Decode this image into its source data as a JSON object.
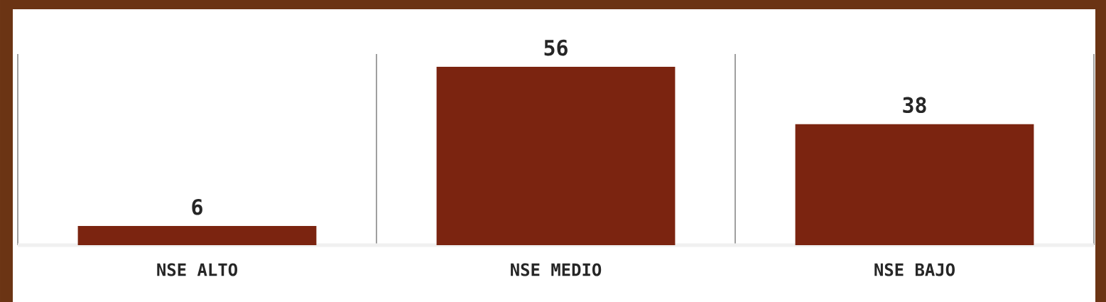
{
  "chart_data": {
    "type": "bar",
    "categories": [
      "NSE ALTO",
      "NSE MEDIO",
      "NSE BAJO"
    ],
    "values": [
      6,
      56,
      38
    ],
    "color": "#7b2410",
    "ylim": [
      0,
      60
    ],
    "data_labels": true
  }
}
